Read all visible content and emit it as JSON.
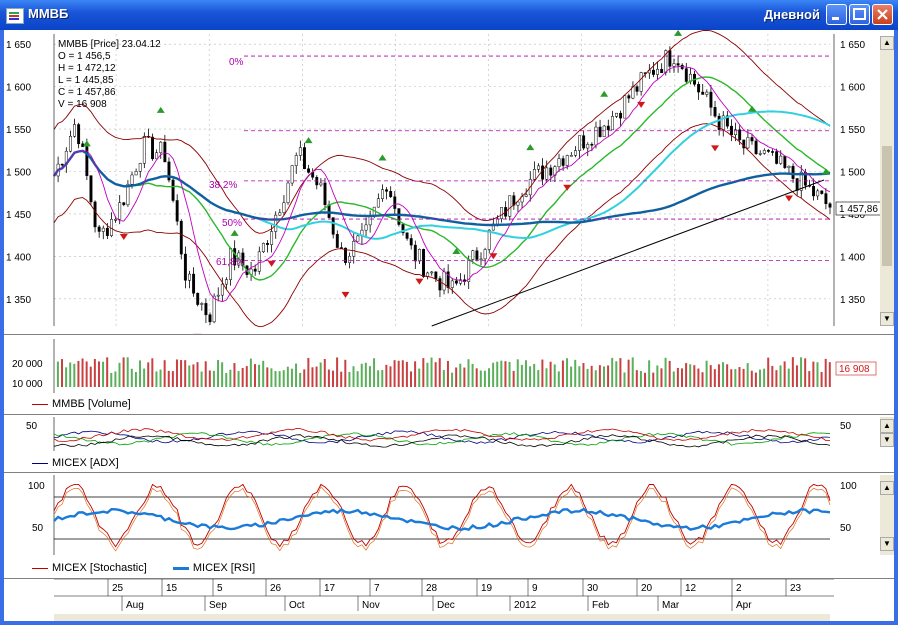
{
  "window": {
    "title": "ММВБ",
    "interval": "Дневной"
  },
  "ohlc": {
    "header": "ММВБ [Price] 23.04.12",
    "o": "O = 1 456,5",
    "h": "H = 1 472,12",
    "l": "L = 1 445,85",
    "c": "C = 1 457,86",
    "v": "V = 16 908",
    "last_label": "1 457,86"
  },
  "fib": {
    "p0": "0%",
    "p382": "38,2%",
    "p50": "50%",
    "p618": "61,8%"
  },
  "colors": {
    "up": "#2a9a2a",
    "down": "#d01818",
    "price": "#000000",
    "fib": "#b000b0"
  },
  "price_axis": {
    "ticks": [
      1650,
      1600,
      1550,
      1500,
      1450,
      1400,
      1350
    ],
    "labels": [
      "1 650",
      "1 600",
      "1 550",
      "1 500",
      "1 450",
      "1 400",
      "1 350"
    ],
    "ylim": [
      1318,
      1662
    ]
  },
  "volume_axis": {
    "labels": [
      "20 000",
      "10 000"
    ],
    "last_label": "16 908",
    "legend": "ММВБ [Volume]"
  },
  "adx_axis": {
    "labels": [
      "50"
    ],
    "legend": "MICEX [ADX]"
  },
  "osc_axis": {
    "labels": [
      "100",
      "50"
    ],
    "legend_stoch": "MICEX [Stochastic]",
    "legend_rsi": "MICEX [RSI]"
  },
  "time_axis": {
    "days": [
      "25",
      "15",
      "5",
      "26",
      "17",
      "7",
      "28",
      "19",
      "9",
      "30",
      "20",
      "12",
      "2",
      "23"
    ],
    "months": [
      "Aug",
      "Sep",
      "Oct",
      "Nov",
      "Dec",
      "2012",
      "Feb",
      "Mar",
      "Apr"
    ]
  },
  "chart_data": {
    "type": "line",
    "title": "ММВБ [Price] 23.04.12",
    "close_keypoints": [
      1495,
      1560,
      1420,
      1460,
      1530,
      1520,
      1370,
      1330,
      1400,
      1380,
      1450,
      1520,
      1480,
      1400,
      1420,
      1490,
      1410,
      1380,
      1360,
      1400,
      1440,
      1480,
      1500,
      1520,
      1540,
      1560,
      1590,
      1620,
      1640,
      1600,
      1560,
      1530,
      1520,
      1500,
      1480,
      1457.86
    ],
    "keypoint_labels": [
      "Aug",
      "",
      "Sep",
      "",
      "",
      "Oct",
      "",
      "",
      "",
      "Nov",
      "",
      "",
      "",
      "Dec",
      "",
      "",
      "",
      "",
      "",
      "2012",
      "",
      "",
      "",
      "",
      "Feb",
      "",
      "",
      "",
      "Mar",
      "",
      "",
      "",
      "Apr",
      "",
      "",
      "23"
    ],
    "last": {
      "date": "23.04.12",
      "open": 1456.5,
      "high": 1472.12,
      "low": 1445.85,
      "close": 1457.86,
      "volume": 16908
    },
    "ylim": [
      1318,
      1662
    ]
  }
}
